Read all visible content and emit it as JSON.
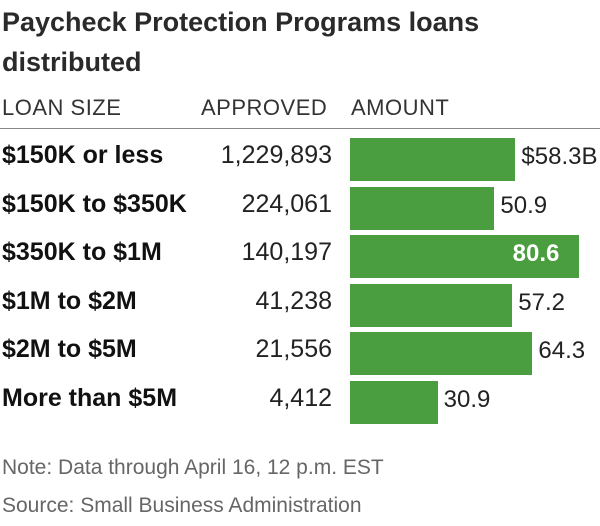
{
  "title": "Paycheck Protection Programs loans distributed",
  "columns": {
    "loan_size": "LOAN SIZE",
    "approved": "APPROVED",
    "amount": "AMOUNT"
  },
  "chart_data": {
    "type": "bar",
    "title": "Paycheck Protection Programs loans distributed",
    "categories": [
      "$150K or less",
      "$150K to $350K",
      "$350K to $1M",
      "$1M to $2M",
      "$2M to $5M",
      "More than $5M"
    ],
    "approved": [
      "1,229,893",
      "224,061",
      "140,197",
      "41,238",
      "21,556",
      "4,412"
    ],
    "values": [
      58.3,
      50.9,
      80.6,
      57.2,
      64.3,
      30.9
    ],
    "value_labels": [
      "$58.3B",
      "50.9",
      "80.6",
      "57.2",
      "64.3",
      "30.9"
    ],
    "highlight_index": 2,
    "xlim": [
      0,
      86
    ],
    "bar_color": "#4a9e3f"
  },
  "note": "Note: Data through April 16, 12 p.m. EST",
  "source": "Source: Small Business Administration"
}
